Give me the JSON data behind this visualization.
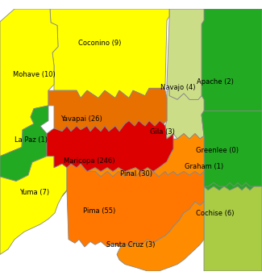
{
  "counties": {
    "Maricopa": {
      "value": 246,
      "color": "#dd0000"
    },
    "Pima": {
      "value": 55,
      "color": "#ff7700"
    },
    "Pinal": {
      "value": 30,
      "color": "#ff8c00"
    },
    "Yavapai": {
      "value": 26,
      "color": "#e87000"
    },
    "Mohave": {
      "value": 10,
      "color": "#ffff00"
    },
    "Coconino": {
      "value": 9,
      "color": "#ffff00"
    },
    "Yuma": {
      "value": 7,
      "color": "#ffff00"
    },
    "Cochise": {
      "value": 6,
      "color": "#aacc44"
    },
    "Navajo": {
      "value": 4,
      "color": "#ccdd88"
    },
    "Gila": {
      "value": 3,
      "color": "#ccdd88"
    },
    "Santa Cruz": {
      "value": 3,
      "color": "#ff8c00"
    },
    "Apache": {
      "value": 2,
      "color": "#22aa22"
    },
    "La Paz": {
      "value": 1,
      "color": "#22aa22"
    },
    "Graham": {
      "value": 1,
      "color": "#22aa22"
    },
    "Greenlee": {
      "value": 0,
      "color": "#22aa22"
    }
  },
  "background_color": "#ffffff",
  "border_color": "#888888",
  "text_color": "#000000",
  "label_fontsize": 6.0
}
